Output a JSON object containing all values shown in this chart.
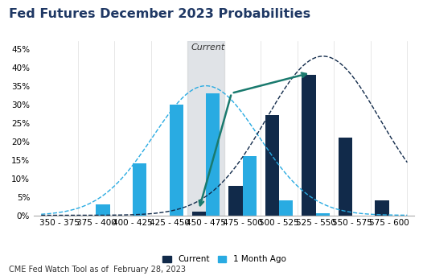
{
  "title": "Fed Futures December 2023 Probabilities",
  "categories": [
    "350 - 375",
    "375 - 400",
    "400 - 425",
    "425 - 450",
    "450 - 475",
    "475 - 500",
    "500 - 525",
    "525 - 550",
    "550 - 575",
    "575 - 600"
  ],
  "current": [
    0,
    0,
    0,
    0,
    1,
    8,
    27,
    38,
    21,
    4
  ],
  "one_month_ago": [
    0,
    3,
    14,
    30,
    33,
    16,
    4,
    0.5,
    0,
    0
  ],
  "current_color": "#112a4a",
  "one_month_ago_color": "#29abe2",
  "highlight_index": 4,
  "highlight_color": "#c8cdd4",
  "highlight_alpha": 0.55,
  "ylim": [
    0,
    47
  ],
  "yticks": [
    0,
    5,
    10,
    15,
    20,
    25,
    30,
    35,
    40,
    45
  ],
  "footnote": "CME Fed Watch Tool as of  February 28, 2023",
  "current_label": "Current",
  "one_month_ago_label": "1 Month Ago",
  "annotation_label": "Current",
  "title_color": "#1f3864",
  "bg_color": "#ffffff",
  "dashed_current_color": "#112a4a",
  "dashed_1month_color": "#29abe2",
  "arrow_color": "#1a7a6e",
  "curve1_mean": 4.0,
  "curve1_std": 1.45,
  "curve1_peak": 35,
  "curve2_mean": 7.2,
  "curve2_std": 1.55,
  "curve2_peak": 43,
  "bar_width": 0.38
}
